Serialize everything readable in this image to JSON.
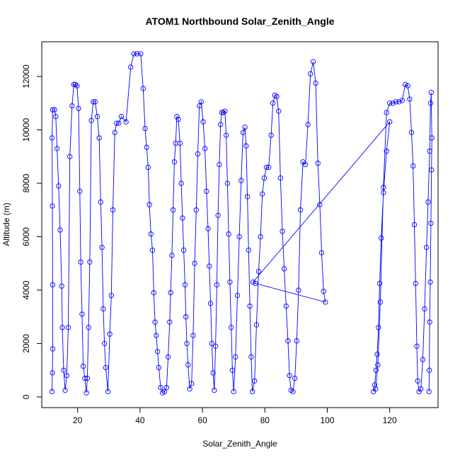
{
  "chart_data": {
    "type": "line",
    "title": "ATOM1 Northbound Solar_Zenith_Angle",
    "xlabel": "Solar_Zenith_Angle",
    "ylabel": "Altitude (m)",
    "xlim": [
      8.5,
      135.5
    ],
    "ylim": [
      -400,
      13300
    ],
    "x_ticks": [
      20,
      40,
      60,
      80,
      100,
      120
    ],
    "y_ticks": [
      0,
      2000,
      4000,
      6000,
      8000,
      10000,
      12000
    ],
    "series_color": "#0000ff",
    "marker": "open-circle",
    "grid": false,
    "legend": "none",
    "series": [
      {
        "values": [
          [
            11.8,
            200
          ],
          [
            11.9,
            900
          ],
          [
            12.0,
            1800
          ],
          [
            12.0,
            4200
          ],
          [
            11.9,
            7150
          ],
          [
            11.8,
            9700
          ],
          [
            12.0,
            10750
          ],
          [
            12.6,
            10750
          ],
          [
            13.0,
            10500
          ],
          [
            13.4,
            9300
          ],
          [
            13.9,
            7900
          ],
          [
            14.4,
            6250
          ],
          [
            14.9,
            4150
          ],
          [
            15.1,
            2600
          ],
          [
            15.5,
            1000
          ],
          [
            16.0,
            250
          ],
          [
            16.5,
            800
          ],
          [
            17.0,
            2600
          ],
          [
            17.5,
            9000
          ],
          [
            18.2,
            10900
          ],
          [
            18.8,
            11700
          ],
          [
            19.3,
            11700
          ],
          [
            19.8,
            11650
          ],
          [
            20.3,
            10800
          ],
          [
            20.7,
            7700
          ],
          [
            21.0,
            5050
          ],
          [
            21.4,
            3100
          ],
          [
            21.8,
            1150
          ],
          [
            22.3,
            700
          ],
          [
            22.8,
            150
          ],
          [
            23.1,
            700
          ],
          [
            23.5,
            2600
          ],
          [
            23.9,
            5050
          ],
          [
            24.4,
            10350
          ],
          [
            25.0,
            11050
          ],
          [
            25.6,
            11050
          ],
          [
            26.3,
            10500
          ],
          [
            26.9,
            9700
          ],
          [
            27.4,
            7300
          ],
          [
            27.8,
            5600
          ],
          [
            28.2,
            3300
          ],
          [
            28.6,
            2000
          ],
          [
            29.0,
            1100
          ],
          [
            29.7,
            200
          ],
          [
            30.3,
            2350
          ],
          [
            30.8,
            3800
          ],
          [
            31.3,
            7000
          ],
          [
            31.9,
            9900
          ],
          [
            32.5,
            10250
          ],
          [
            33.2,
            10250
          ],
          [
            34.0,
            10500
          ],
          [
            35.5,
            10300
          ],
          [
            37.0,
            12350
          ],
          [
            38.0,
            12850
          ],
          [
            39.0,
            12850
          ],
          [
            40.2,
            12850
          ],
          [
            41.0,
            11550
          ],
          [
            41.6,
            10050
          ],
          [
            42.1,
            9350
          ],
          [
            42.6,
            8600
          ],
          [
            43.0,
            7200
          ],
          [
            43.5,
            6100
          ],
          [
            44.0,
            5500
          ],
          [
            44.4,
            3900
          ],
          [
            44.8,
            2800
          ],
          [
            45.2,
            2300
          ],
          [
            45.6,
            1700
          ],
          [
            46.0,
            1100
          ],
          [
            46.6,
            350
          ],
          [
            47.2,
            150
          ],
          [
            47.8,
            200
          ],
          [
            48.5,
            350
          ],
          [
            49.0,
            1500
          ],
          [
            49.5,
            2800
          ],
          [
            49.8,
            3900
          ],
          [
            50.2,
            5300
          ],
          [
            50.6,
            7000
          ],
          [
            51.0,
            8800
          ],
          [
            51.4,
            9500
          ],
          [
            51.8,
            10500
          ],
          [
            52.3,
            10400
          ],
          [
            52.8,
            9500
          ],
          [
            53.2,
            8000
          ],
          [
            53.6,
            6700
          ],
          [
            54.0,
            5500
          ],
          [
            54.4,
            4200
          ],
          [
            54.7,
            3000
          ],
          [
            55.0,
            2000
          ],
          [
            55.4,
            1200
          ],
          [
            55.9,
            300
          ],
          [
            56.5,
            500
          ],
          [
            57.0,
            2300
          ],
          [
            57.5,
            5000
          ],
          [
            58.0,
            7000
          ],
          [
            58.5,
            9100
          ],
          [
            59.0,
            10900
          ],
          [
            59.6,
            11050
          ],
          [
            60.2,
            10300
          ],
          [
            60.8,
            9300
          ],
          [
            61.3,
            7700
          ],
          [
            61.8,
            6300
          ],
          [
            62.2,
            4900
          ],
          [
            62.6,
            3500
          ],
          [
            63.0,
            2000
          ],
          [
            63.4,
            900
          ],
          [
            63.8,
            250
          ],
          [
            64.2,
            1900
          ],
          [
            64.6,
            4200
          ],
          [
            65.0,
            6800
          ],
          [
            65.4,
            8700
          ],
          [
            65.8,
            10200
          ],
          [
            66.2,
            10650
          ],
          [
            66.7,
            10650
          ],
          [
            67.2,
            10700
          ],
          [
            67.6,
            9800
          ],
          [
            68.0,
            8000
          ],
          [
            68.4,
            6100
          ],
          [
            68.8,
            4300
          ],
          [
            69.2,
            2600
          ],
          [
            69.6,
            1000
          ],
          [
            70.0,
            200
          ],
          [
            70.6,
            1500
          ],
          [
            71.2,
            3800
          ],
          [
            71.8,
            6000
          ],
          [
            72.4,
            8100
          ],
          [
            73.0,
            9900
          ],
          [
            73.6,
            10100
          ],
          [
            74.0,
            9400
          ],
          [
            74.4,
            7500
          ],
          [
            74.8,
            5500
          ],
          [
            75.2,
            3400
          ],
          [
            75.6,
            1500
          ],
          [
            76.0,
            200
          ],
          [
            76.7,
            600
          ],
          [
            77.3,
            2700
          ],
          [
            78.0,
            4700
          ],
          [
            78.6,
            6000
          ],
          [
            79.2,
            7600
          ],
          [
            79.8,
            8200
          ],
          [
            80.5,
            8600
          ],
          [
            81.2,
            8600
          ],
          [
            82.0,
            9800
          ],
          [
            82.6,
            11000
          ],
          [
            83.2,
            11300
          ],
          [
            83.8,
            11250
          ],
          [
            84.4,
            10700
          ],
          [
            85.0,
            8200
          ],
          [
            85.6,
            6200
          ],
          [
            86.2,
            4800
          ],
          [
            86.8,
            3400
          ],
          [
            87.4,
            2100
          ],
          [
            87.9,
            800
          ],
          [
            88.4,
            250
          ],
          [
            89.0,
            200
          ],
          [
            89.6,
            700
          ],
          [
            90.2,
            2100
          ],
          [
            90.8,
            4000
          ],
          [
            91.4,
            7000
          ],
          [
            92.2,
            8800
          ],
          [
            93.0,
            8700
          ],
          [
            93.8,
            10200
          ],
          [
            94.6,
            12100
          ],
          [
            95.5,
            12550
          ],
          [
            96.3,
            11750
          ],
          [
            97.0,
            8750
          ],
          [
            97.6,
            7200
          ],
          [
            98.2,
            5400
          ],
          [
            98.8,
            3950
          ],
          [
            99.4,
            3550
          ],
          [
            77.0,
            4250
          ],
          [
            76.2,
            4300
          ],
          [
            120.0,
            10300
          ],
          [
            119.0,
            9200
          ],
          [
            118.0,
            7650
          ],
          [
            117.3,
            5950
          ],
          [
            116.8,
            4250
          ],
          [
            116.4,
            2600
          ],
          [
            116.0,
            1600
          ],
          [
            115.6,
            1000
          ],
          [
            115.2,
            450
          ],
          [
            114.8,
            200
          ],
          [
            115.5,
            300
          ],
          [
            116.2,
            1200
          ],
          [
            117.0,
            3550
          ],
          [
            118.0,
            7850
          ],
          [
            119.0,
            10650
          ],
          [
            120.0,
            11000
          ],
          [
            121.0,
            11000
          ],
          [
            122.0,
            11050
          ],
          [
            123.0,
            11050
          ],
          [
            124.0,
            11100
          ],
          [
            125.0,
            11700
          ],
          [
            125.8,
            11650
          ],
          [
            126.4,
            11150
          ],
          [
            127.0,
            9900
          ],
          [
            127.5,
            8650
          ],
          [
            127.9,
            6450
          ],
          [
            128.3,
            4250
          ],
          [
            128.7,
            1900
          ],
          [
            129.0,
            600
          ],
          [
            129.4,
            200
          ],
          [
            130.0,
            300
          ],
          [
            130.6,
            1400
          ],
          [
            131.2,
            3300
          ],
          [
            131.8,
            5600
          ],
          [
            132.3,
            7300
          ],
          [
            132.8,
            9200
          ],
          [
            133.1,
            11000
          ],
          [
            133.3,
            11400
          ],
          [
            133.5,
            9700
          ],
          [
            133.4,
            8500
          ],
          [
            133.2,
            6500
          ],
          [
            133.0,
            4300
          ],
          [
            132.8,
            2800
          ],
          [
            132.7,
            1000
          ],
          [
            132.6,
            200
          ]
        ]
      }
    ]
  }
}
